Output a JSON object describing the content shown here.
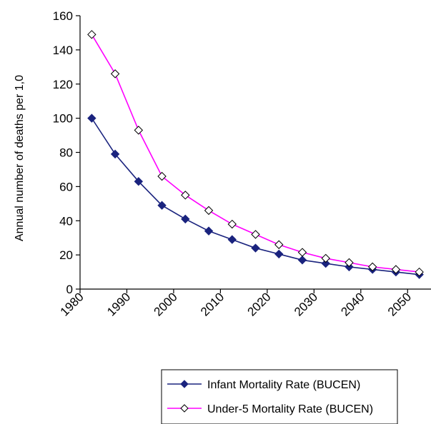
{
  "chart_data": {
    "type": "line",
    "title": "",
    "xlabel": "",
    "ylabel": "Annual number of deaths per 1,0",
    "xlim": [
      1980,
      2055
    ],
    "ylim": [
      0,
      160
    ],
    "yticks": [
      0,
      20,
      40,
      60,
      80,
      100,
      120,
      140,
      160
    ],
    "xticks": [
      1980,
      1990,
      2000,
      2010,
      2020,
      2030,
      2040,
      2050
    ],
    "grid": false,
    "legend_position": "bottom-right",
    "x": [
      1982.5,
      1987.5,
      1992.5,
      1997.5,
      2002.5,
      2007.5,
      2012.5,
      2017.5,
      2022.5,
      2027.5,
      2032.5,
      2037.5,
      2042.5,
      2047.5,
      2052.5
    ],
    "series": [
      {
        "name": "Infant Mortality Rate (BUCEN)",
        "color": "#1a237e",
        "marker": "diamond-filled",
        "values": [
          100,
          79,
          63,
          49,
          41,
          34,
          29,
          24,
          20.5,
          17,
          15,
          13,
          11.5,
          10,
          8.5
        ]
      },
      {
        "name": "Under-5 Mortality Rate (BUCEN)",
        "color": "#ff00ff",
        "marker": "diamond-open",
        "values": [
          149,
          126,
          93,
          66,
          55,
          46,
          38,
          32,
          26,
          21.5,
          18,
          15.5,
          13,
          11.5,
          10
        ]
      }
    ]
  }
}
